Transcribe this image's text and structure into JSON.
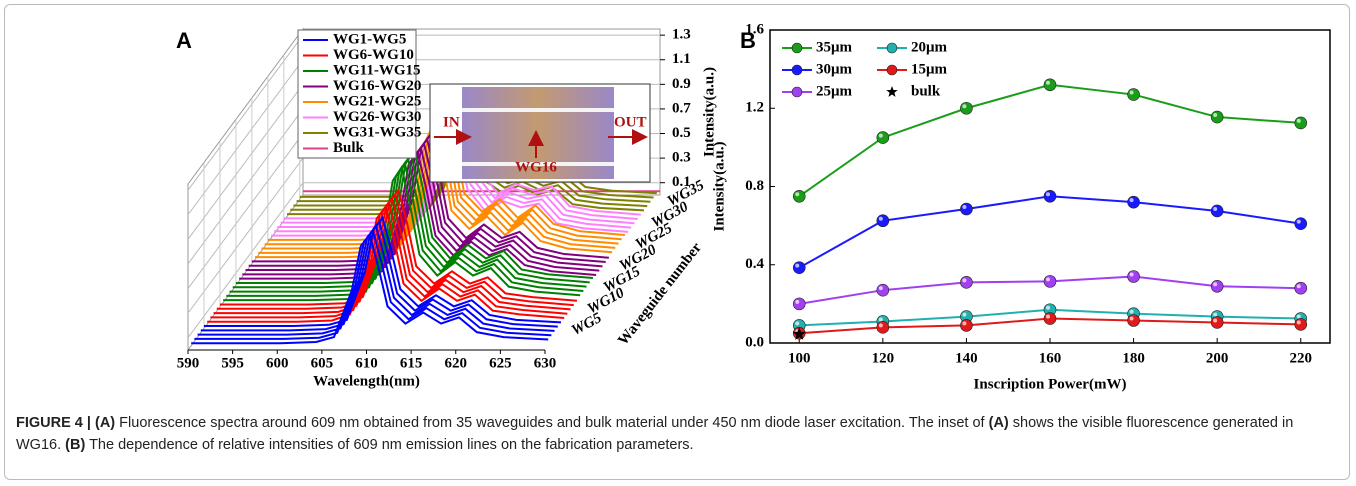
{
  "chart_data": [
    {
      "type": "waterfall",
      "panel": "A",
      "xlabel": "Wavelength(nm)",
      "ylabel": "Intensity(a.u.)",
      "zlabel": "Waveguide number",
      "x": [
        590,
        600,
        604,
        606,
        608,
        609,
        610,
        611,
        612,
        614,
        616,
        618,
        620,
        622,
        625,
        630
      ],
      "xlim": [
        590,
        630
      ],
      "xticks": [
        590,
        595,
        600,
        605,
        610,
        615,
        620,
        625,
        630
      ],
      "ylim": [
        0,
        1.35
      ],
      "yticks": [
        0.1,
        0.3,
        0.5,
        0.7,
        0.9,
        1.1,
        1.3
      ],
      "zlim": [
        0,
        36
      ],
      "zticks": [
        {
          "value": 5,
          "label": "WG5"
        },
        {
          "value": 10,
          "label": "WG10"
        },
        {
          "value": 15,
          "label": "WG15"
        },
        {
          "value": 20,
          "label": "WG20"
        },
        {
          "value": 25,
          "label": "WG25"
        },
        {
          "value": 30,
          "label": "WG30"
        },
        {
          "value": 35,
          "label": "WG35"
        }
      ],
      "series": [
        {
          "name": "WG1-WG5",
          "color": "#0000ff",
          "values": [
            0.02,
            0.02,
            0.03,
            0.07,
            0.45,
            0.81,
            0.9,
            0.63,
            0.32,
            0.18,
            0.27,
            0.18,
            0.23,
            0.11,
            0.07,
            0.05
          ]
        },
        {
          "name": "WG6-WG10",
          "color": "#ff0000",
          "values": [
            0.02,
            0.02,
            0.03,
            0.08,
            0.48,
            0.86,
            0.95,
            0.67,
            0.33,
            0.19,
            0.29,
            0.19,
            0.24,
            0.11,
            0.08,
            0.05
          ]
        },
        {
          "name": "WG11-WG15",
          "color": "#008000",
          "values": [
            0.02,
            0.02,
            0.03,
            0.09,
            0.55,
            0.99,
            1.1,
            0.77,
            0.39,
            0.22,
            0.33,
            0.22,
            0.28,
            0.13,
            0.09,
            0.06
          ]
        },
        {
          "name": "WG16-WG20",
          "color": "#800080",
          "values": [
            0.02,
            0.02,
            0.03,
            0.08,
            0.53,
            0.95,
            1.05,
            0.74,
            0.37,
            0.21,
            0.32,
            0.21,
            0.26,
            0.13,
            0.08,
            0.05
          ]
        },
        {
          "name": "WG21-WG25",
          "color": "#ff8c00",
          "values": [
            0.02,
            0.02,
            0.03,
            0.09,
            0.5,
            0.95,
            1.1,
            0.8,
            0.4,
            0.25,
            0.35,
            0.2,
            0.3,
            0.15,
            0.09,
            0.06
          ]
        },
        {
          "name": "WG26-WG30",
          "color": "#ff80ff",
          "values": [
            0.02,
            0.02,
            0.03,
            0.08,
            0.5,
            0.9,
            1.05,
            0.75,
            0.4,
            0.22,
            0.3,
            0.25,
            0.28,
            0.12,
            0.08,
            0.05
          ]
        },
        {
          "name": "WG31-WG35",
          "color": "#808000",
          "values": [
            0.02,
            0.02,
            0.03,
            0.07,
            0.42,
            0.8,
            0.9,
            0.65,
            0.3,
            0.2,
            0.25,
            0.18,
            0.22,
            0.1,
            0.07,
            0.05
          ]
        },
        {
          "name": "Bulk",
          "color": "#e0408a",
          "values": [
            0.03,
            0.03,
            0.03,
            0.03,
            0.03,
            0.03,
            0.03,
            0.03,
            0.03,
            0.03,
            0.03,
            0.03,
            0.03,
            0.03,
            0.03,
            0.03
          ]
        }
      ],
      "inset": {
        "left": "IN",
        "right": "OUT",
        "arrow": "WG16"
      }
    },
    {
      "type": "line",
      "panel": "B",
      "xlabel": "Inscription Power(mW)",
      "ylabel": "Intensity(a.u.)",
      "x": [
        100,
        120,
        140,
        160,
        180,
        200,
        220
      ],
      "xlim": [
        93,
        227
      ],
      "xticks": [
        100,
        120,
        140,
        160,
        180,
        200,
        220
      ],
      "ylim": [
        0,
        1.6
      ],
      "yticks": [
        {
          "value": 0,
          "label": "0.0"
        },
        {
          "value": 0.4,
          "label": "0.4"
        },
        {
          "value": 0.8,
          "label": "0.8"
        },
        {
          "value": 1.2,
          "label": "1.2"
        },
        {
          "value": 1.6,
          "label": "1.6"
        }
      ],
      "series": [
        {
          "name": "35μm",
          "color": "#1a9e1a",
          "values": [
            0.75,
            1.05,
            1.2,
            1.32,
            1.27,
            1.155,
            1.125
          ]
        },
        {
          "name": "30μm",
          "color": "#1a1aff",
          "values": [
            0.385,
            0.625,
            0.685,
            0.75,
            0.72,
            0.675,
            0.61
          ]
        },
        {
          "name": "25μm",
          "color": "#a040f0",
          "values": [
            0.2,
            0.27,
            0.31,
            0.315,
            0.34,
            0.29,
            0.28
          ]
        },
        {
          "name": "20μm",
          "color": "#20b0b0",
          "values": [
            0.09,
            0.11,
            0.135,
            0.17,
            0.15,
            0.135,
            0.125
          ]
        },
        {
          "name": "15μm",
          "color": "#e01a1a",
          "values": [
            0.05,
            0.08,
            0.09,
            0.125,
            0.115,
            0.105,
            0.095
          ]
        },
        {
          "name": "bulk",
          "color": "#000000",
          "marker": "star",
          "values": [
            0.045,
            null,
            null,
            null,
            null,
            null,
            null
          ]
        }
      ]
    }
  ],
  "caption": {
    "figure": "FIGURE 4 |",
    "a1": "(A)",
    "t1": "Fluorescence spectra around 609 nm obtained from 35 waveguides and bulk material under 450 nm diode laser excitation. The inset of",
    "a2": "(A)",
    "t2": "shows the visible fluorescence generated in WG16.",
    "b": "(B)",
    "t3": "The dependence of relative intensities of 609 nm emission lines on the fabrication parameters."
  }
}
